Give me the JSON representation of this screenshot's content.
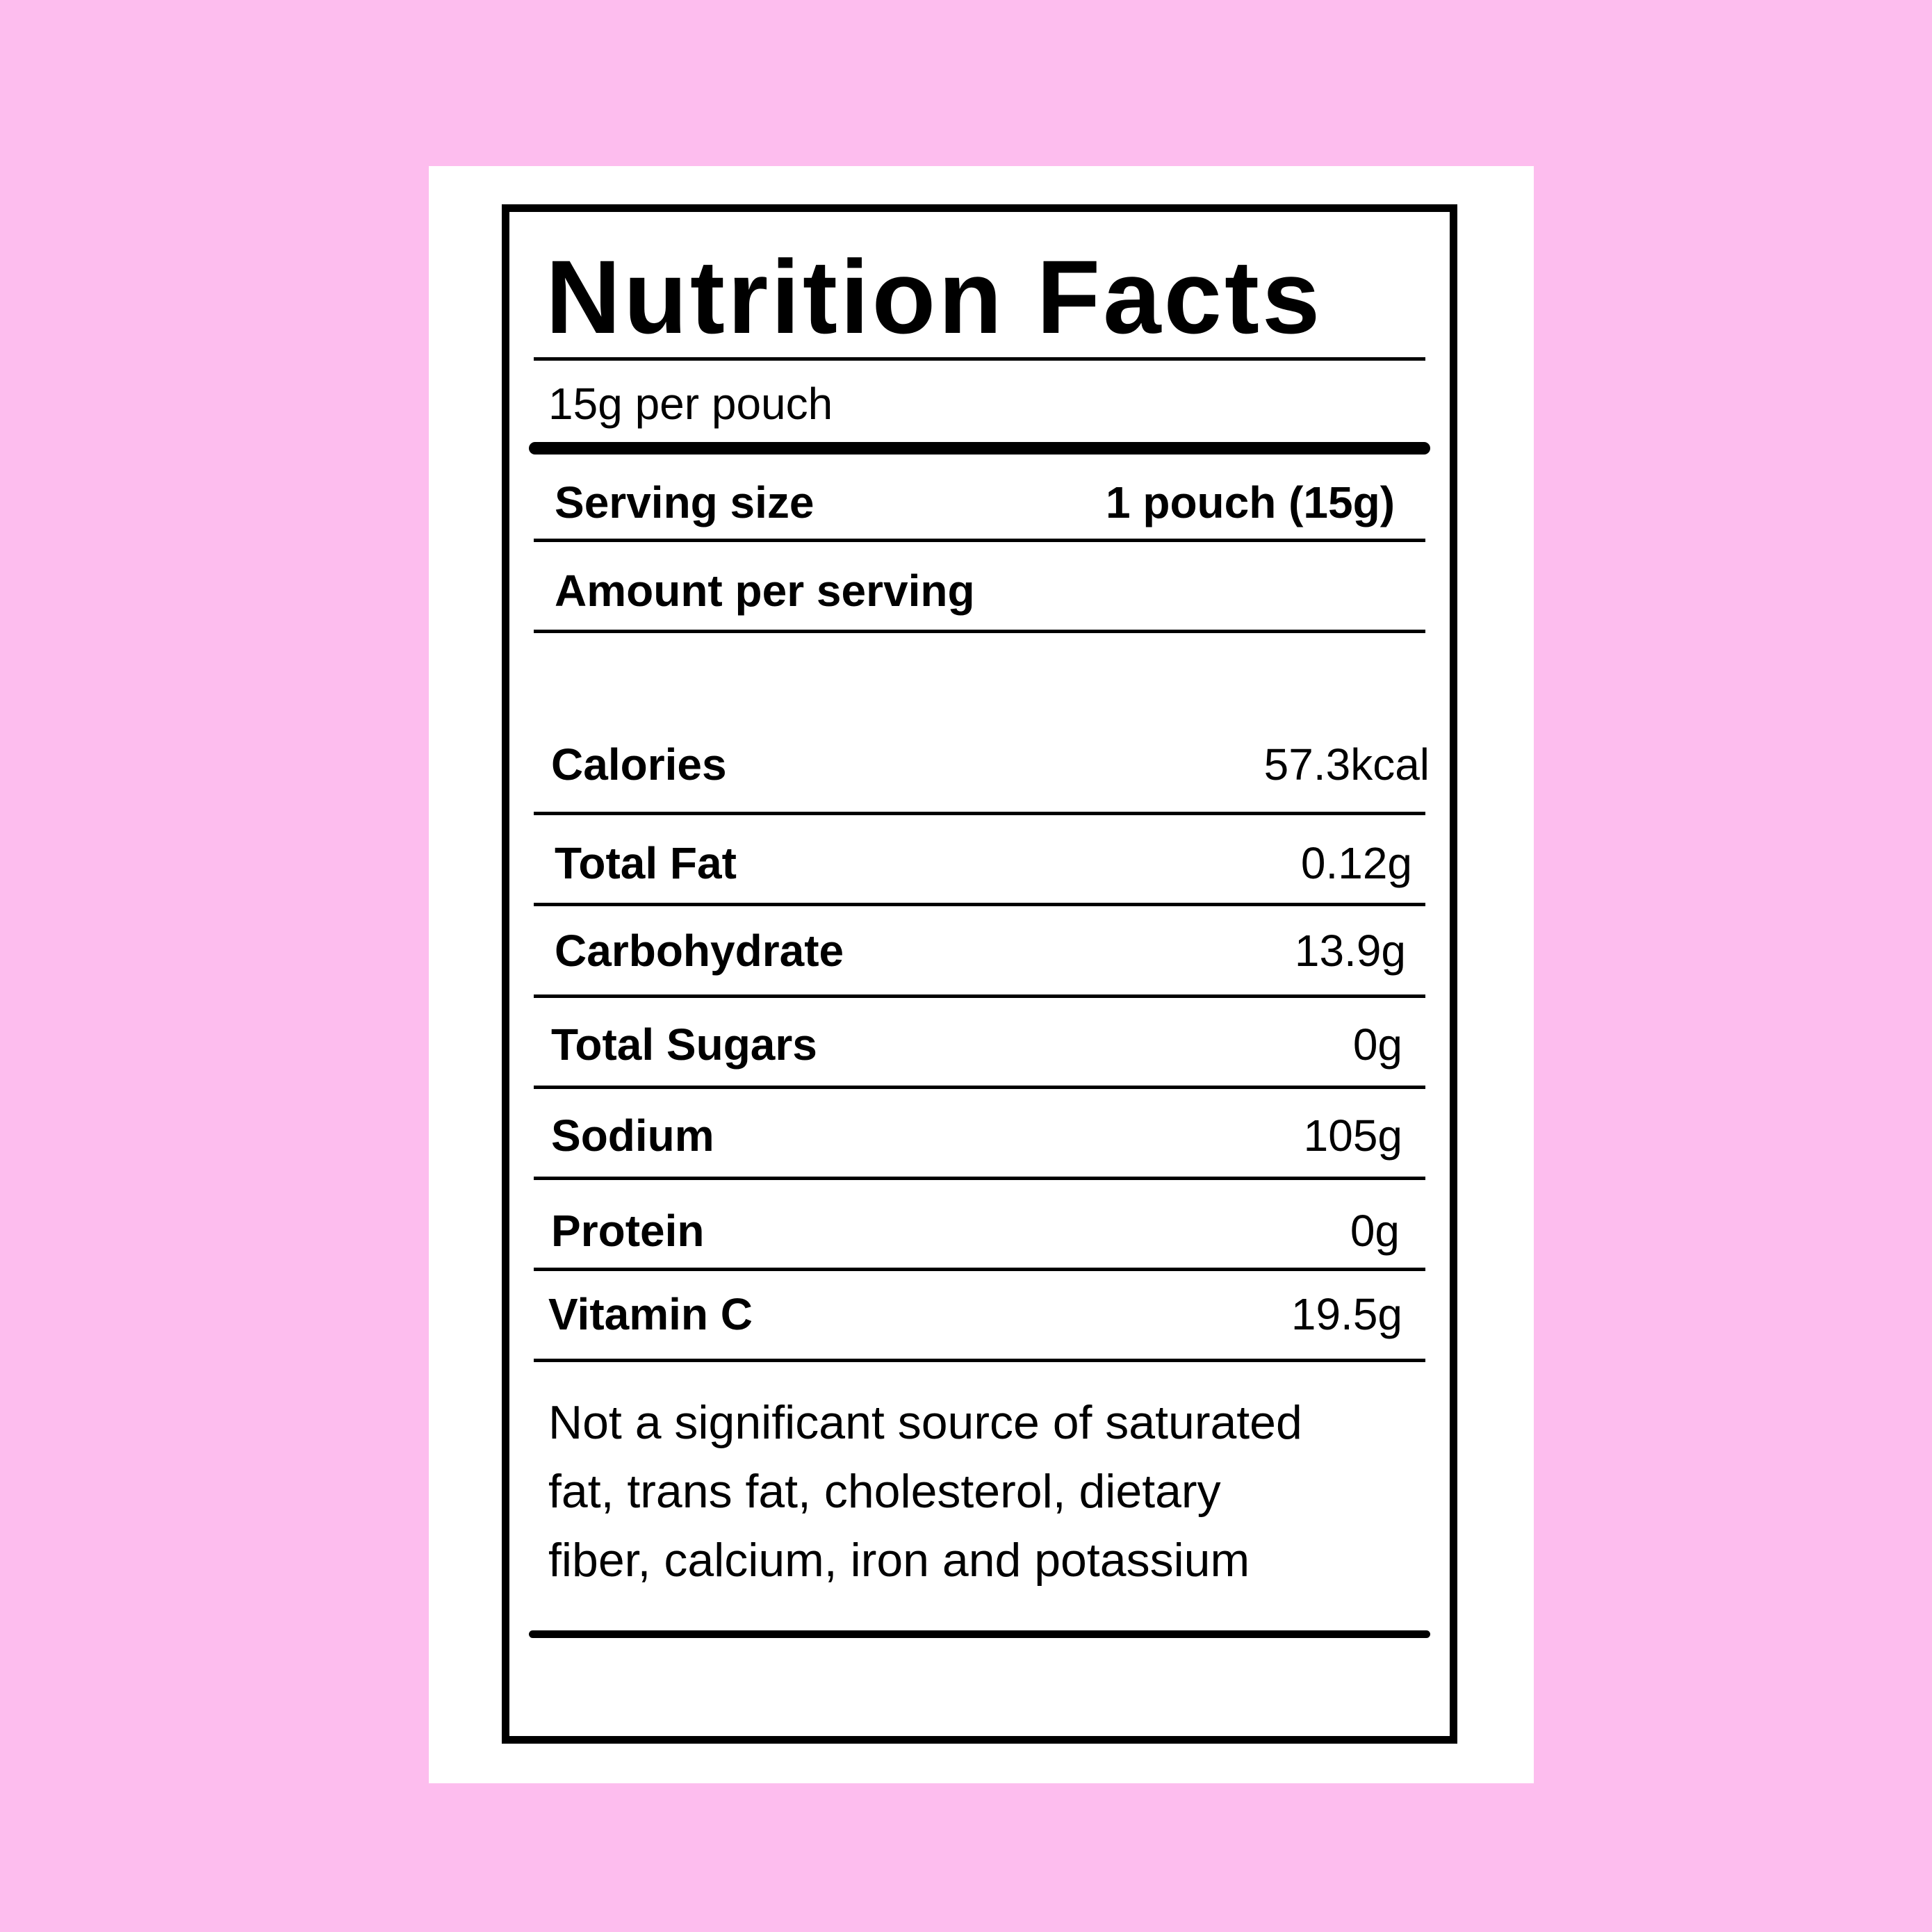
{
  "colors": {
    "background": "#FDBDEE",
    "card": "#FFFFFF",
    "ink": "#000000"
  },
  "label": {
    "title": "Nutrition Facts",
    "subtitle": "15g per pouch",
    "serving_size_label": "Serving size",
    "serving_size_value": "1 pouch (15g)",
    "amount_per_serving": "Amount per serving",
    "nutrients": [
      {
        "name": "Calories",
        "value": "57.3kcal"
      },
      {
        "name": "Total Fat",
        "value": "0.12g"
      },
      {
        "name": "Carbohydrate",
        "value": "13.9g"
      },
      {
        "name": "Total Sugars",
        "value": "0g"
      },
      {
        "name": "Sodium",
        "value": "105g"
      },
      {
        "name": "Protein",
        "value": "0g"
      },
      {
        "name": "Vitamin C",
        "value": "19.5g"
      }
    ],
    "footnote_lines": [
      "Not a significant source of saturated",
      "fat, trans fat, cholesterol, dietary",
      "fiber, calcium, iron and potassium"
    ]
  }
}
